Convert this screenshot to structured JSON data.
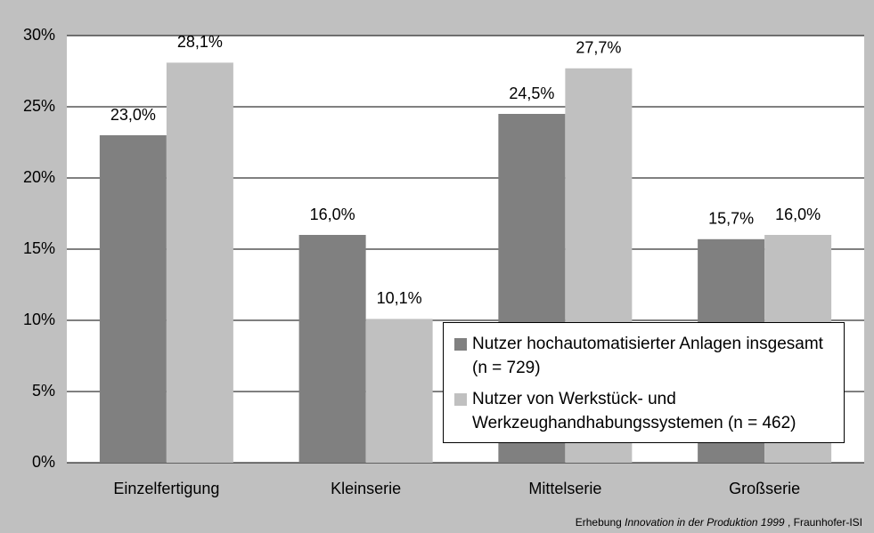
{
  "chart_data": {
    "type": "bar",
    "categories": [
      "Einzelfertigung",
      "Kleinserie",
      "Mittelserie",
      "Großserie"
    ],
    "series": [
      {
        "name": "Nutzer hochautomatisierter Anlagen insgesamt (n = 729)",
        "color": "#808080",
        "values": [
          23.0,
          16.0,
          24.5,
          15.7
        ],
        "value_labels": [
          "23,0%",
          "16,0%",
          "24,5%",
          "15,7%"
        ]
      },
      {
        "name": "Nutzer von Werkstück- und Werkzeughandhabungssystemen (n = 462)",
        "color": "#c0c0c0",
        "values": [
          28.1,
          10.1,
          27.7,
          16.0
        ],
        "value_labels": [
          "28,1%",
          "10,1%",
          "27,7%",
          "16,0%"
        ]
      }
    ],
    "ylim": [
      0,
      30
    ],
    "yticks": [
      {
        "value": 0,
        "label": "0%"
      },
      {
        "value": 5,
        "label": "5%"
      },
      {
        "value": 10,
        "label": "10%"
      },
      {
        "value": 15,
        "label": "15%"
      },
      {
        "value": 20,
        "label": "20%"
      },
      {
        "value": 25,
        "label": "25%"
      },
      {
        "value": 30,
        "label": "30%"
      }
    ],
    "grid": true,
    "source": {
      "prefix": "Erhebung",
      "italic": "Innovation in der Produktion 1999",
      "suffix": ", Fraunhofer-ISI"
    }
  }
}
